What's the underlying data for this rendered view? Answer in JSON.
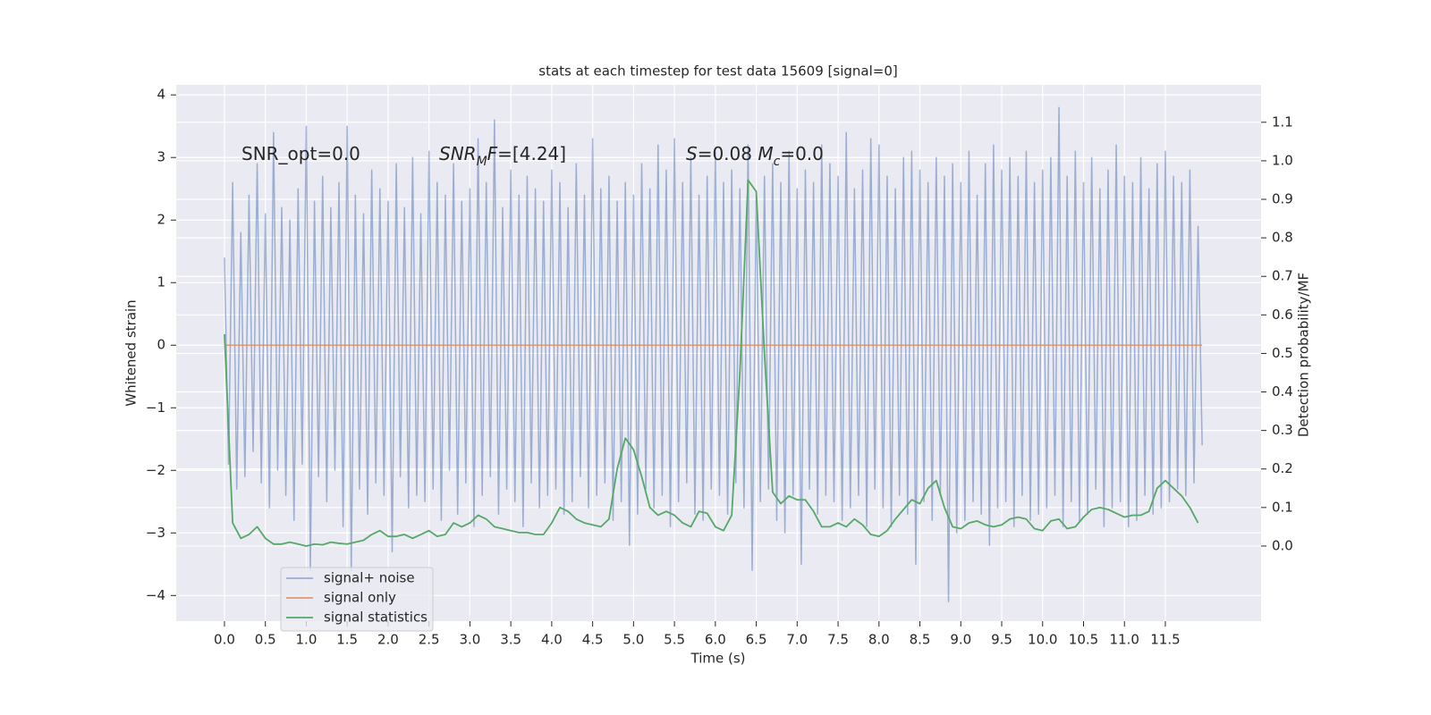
{
  "chart_data": {
    "type": "line",
    "title": "stats at each timestep for test data 15609 [signal=0]",
    "xlabel": "Time (s)",
    "ylabel": "Whitened strain",
    "y2label": "Detection probability/MF",
    "xlim": [
      -0.59,
      12.67
    ],
    "ylim": [
      -4.41,
      4.16
    ],
    "y2lim": [
      -0.195,
      1.197
    ],
    "grid": true,
    "background": "#eaeaf2",
    "legend": "lower left",
    "xticks": [
      {
        "value": 0,
        "label": "0.0"
      },
      0.5,
      {
        "value": 1,
        "label": "1.0"
      },
      1.5,
      {
        "value": 2,
        "label": "2.0"
      },
      2.5,
      {
        "value": 3,
        "label": "3.0"
      },
      3.5,
      {
        "value": 4,
        "label": "4.0"
      },
      4.5,
      {
        "value": 5,
        "label": "5.0"
      },
      5.5,
      {
        "value": 6,
        "label": "6.0"
      },
      6.5,
      {
        "value": 7,
        "label": "7.0"
      },
      7.5,
      {
        "value": 8,
        "label": "8.0"
      },
      8.5,
      {
        "value": 9,
        "label": "9.0"
      },
      9.5,
      {
        "value": 10,
        "label": "10.0"
      },
      10.5,
      {
        "value": 11,
        "label": "11.0"
      },
      11.5
    ],
    "yticks": [
      {
        "value": -4,
        "label": "−4"
      },
      {
        "value": -3,
        "label": "−3"
      },
      {
        "value": -2,
        "label": "−2"
      },
      {
        "value": -1,
        "label": "−1"
      },
      0,
      1,
      2,
      3,
      4
    ],
    "y2ticks": [
      {
        "value": 0,
        "label": "0.0"
      },
      0.1,
      0.2,
      0.3,
      0.4,
      0.5,
      0.6,
      0.7,
      0.8,
      0.9,
      {
        "value": 1,
        "label": "1.0"
      },
      1.1
    ],
    "annotations": [
      {
        "parts": [
          {
            "text": "SNR_opt=0.0"
          }
        ]
      },
      {
        "parts": [
          {
            "text": "SNR",
            "italic": true
          },
          {
            "text": "M",
            "italic": true,
            "sub": true
          },
          {
            "text": "F",
            "italic": true
          },
          {
            "text": "=[4.24]"
          }
        ]
      },
      {
        "parts": [
          {
            "text": "S",
            "italic": true
          },
          {
            "text": "=0.08   "
          },
          {
            "text": "M",
            "italic": true
          },
          {
            "text": "c",
            "italic": true,
            "sub": true
          },
          {
            "text": "=0.0"
          }
        ]
      }
    ],
    "series": [
      {
        "name": "signal+ noise",
        "color": "#4c72b0",
        "opacity": 0.5,
        "x": [
          0,
          0.05,
          0.1,
          0.15,
          0.2,
          0.25,
          0.3,
          0.35,
          0.4,
          0.45,
          0.5,
          0.55,
          0.6,
          0.65,
          0.7,
          0.75,
          0.8,
          0.85,
          0.9,
          0.95,
          1,
          1.05,
          1.1,
          1.15,
          1.2,
          1.25,
          1.3,
          1.35,
          1.4,
          1.45,
          1.5,
          1.55,
          1.6,
          1.65,
          1.7,
          1.75,
          1.8,
          1.85,
          1.9,
          1.95,
          2,
          2.05,
          2.1,
          2.15,
          2.2,
          2.25,
          2.3,
          2.35,
          2.4,
          2.45,
          2.5,
          2.55,
          2.6,
          2.65,
          2.7,
          2.75,
          2.8,
          2.85,
          2.9,
          2.95,
          3,
          3.05,
          3.1,
          3.15,
          3.2,
          3.25,
          3.3,
          3.35,
          3.4,
          3.45,
          3.5,
          3.55,
          3.6,
          3.65,
          3.7,
          3.75,
          3.8,
          3.85,
          3.9,
          3.95,
          4,
          4.05,
          4.1,
          4.15,
          4.2,
          4.25,
          4.3,
          4.35,
          4.4,
          4.45,
          4.5,
          4.55,
          4.6,
          4.65,
          4.7,
          4.75,
          4.8,
          4.85,
          4.9,
          4.95,
          5,
          5.05,
          5.1,
          5.15,
          5.2,
          5.25,
          5.3,
          5.35,
          5.4,
          5.45,
          5.5,
          5.55,
          5.6,
          5.65,
          5.7,
          5.75,
          5.8,
          5.85,
          5.9,
          5.95,
          6,
          6.05,
          6.1,
          6.15,
          6.2,
          6.25,
          6.3,
          6.35,
          6.4,
          6.45,
          6.5,
          6.55,
          6.6,
          6.65,
          6.7,
          6.75,
          6.8,
          6.85,
          6.9,
          6.95,
          7,
          7.05,
          7.1,
          7.15,
          7.2,
          7.25,
          7.3,
          7.35,
          7.4,
          7.45,
          7.5,
          7.55,
          7.6,
          7.65,
          7.7,
          7.75,
          7.8,
          7.85,
          7.9,
          7.95,
          8,
          8.05,
          8.1,
          8.15,
          8.2,
          8.25,
          8.3,
          8.35,
          8.4,
          8.45,
          8.5,
          8.55,
          8.6,
          8.65,
          8.7,
          8.75,
          8.8,
          8.85,
          8.9,
          8.95,
          9,
          9.05,
          9.1,
          9.15,
          9.2,
          9.25,
          9.3,
          9.35,
          9.4,
          9.45,
          9.5,
          9.55,
          9.6,
          9.65,
          9.7,
          9.75,
          9.8,
          9.85,
          9.9,
          9.95,
          10,
          10.05,
          10.1,
          10.15,
          10.2,
          10.25,
          10.3,
          10.35,
          10.4,
          10.45,
          10.5,
          10.55,
          10.6,
          10.65,
          10.7,
          10.75,
          10.8,
          10.85,
          10.9,
          10.95,
          11,
          11.05,
          11.1,
          11.15,
          11.2,
          11.25,
          11.3,
          11.35,
          11.4,
          11.45,
          11.5,
          11.55,
          11.6,
          11.65,
          11.7,
          11.75,
          11.8,
          11.85,
          11.9,
          11.95
        ],
        "values": [
          1.4,
          -1.9,
          2.6,
          -2.3,
          1.8,
          -2.1,
          2.4,
          -1.7,
          2.9,
          -2.2,
          2.1,
          -2.6,
          3.4,
          -2.0,
          2.2,
          -2.4,
          2.0,
          -2.8,
          2.5,
          -1.9,
          3.5,
          -3.6,
          2.3,
          -2.1,
          2.7,
          -2.5,
          2.2,
          -2.0,
          2.6,
          -2.9,
          3.5,
          -3.6,
          2.4,
          -2.3,
          2.1,
          -2.7,
          2.8,
          -2.2,
          2.5,
          -2.4,
          2.3,
          -3.3,
          2.9,
          -2.1,
          2.2,
          -2.6,
          3.0,
          -2.4,
          2.1,
          -2.5,
          3.1,
          -2.3,
          2.6,
          -2.8,
          2.4,
          -2.0,
          2.9,
          -2.7,
          2.3,
          -2.2,
          2.5,
          -2.9,
          3.3,
          -2.4,
          2.6,
          -2.1,
          3.6,
          -2.7,
          2.2,
          -2.3,
          2.8,
          -2.5,
          2.4,
          -2.9,
          2.7,
          -2.2,
          2.5,
          -2.6,
          2.3,
          -2.4,
          2.8,
          -2.3,
          2.6,
          -2.7,
          2.2,
          -2.5,
          2.9,
          -2.1,
          2.4,
          -2.6,
          3.3,
          -2.4,
          2.5,
          -2.2,
          2.7,
          -2.8,
          2.3,
          -2.5,
          2.6,
          -3.2,
          2.4,
          -2.7,
          2.9,
          -2.3,
          2.5,
          -2.6,
          3.2,
          -2.4,
          2.8,
          -2.9,
          3.3,
          -2.5,
          2.6,
          -2.2,
          3.0,
          -2.7,
          2.4,
          -2.8,
          2.7,
          -2.3,
          3.1,
          -2.4,
          2.6,
          -2.7,
          2.8,
          -2.2,
          2.5,
          -2.6,
          3.2,
          -3.6,
          2.4,
          -2.5,
          2.7,
          -2.3,
          2.9,
          -2.8,
          2.6,
          -3.0,
          3.1,
          -2.4,
          2.5,
          -3.5,
          2.8,
          -2.3,
          2.6,
          -2.7,
          3.2,
          -2.4,
          2.9,
          -2.5,
          2.7,
          -2.8,
          3.4,
          -2.6,
          2.5,
          -2.4,
          2.8,
          -2.9,
          3.3,
          -2.3,
          3.2,
          -2.6,
          2.7,
          -2.9,
          2.5,
          -2.4,
          3.0,
          -2.7,
          3.1,
          -3.5,
          2.8,
          -2.5,
          2.6,
          -2.8,
          3.0,
          -2.4,
          2.7,
          -4.1,
          2.9,
          -3.0,
          2.6,
          -2.8,
          3.1,
          -2.5,
          2.4,
          -2.7,
          2.9,
          -3.2,
          3.2,
          -2.6,
          2.8,
          -2.5,
          3.0,
          -2.9,
          2.7,
          -2.4,
          3.1,
          -2.8,
          2.6,
          -2.7,
          2.8,
          -2.6,
          3.0,
          -2.4,
          3.8,
          -2.9,
          2.7,
          -2.5,
          3.1,
          -2.8,
          2.6,
          -2.7,
          3.0,
          -2.3,
          2.5,
          -2.9,
          2.8,
          -2.6,
          3.2,
          -2.5,
          2.7,
          -2.9,
          2.6,
          -2.8,
          3.0,
          -2.4,
          2.5,
          -2.7,
          2.9,
          -2.6,
          3.1,
          -2.5,
          2.7,
          -2.3,
          2.6,
          -2.4,
          2.8,
          -2.2,
          1.9,
          -1.6
        ]
      },
      {
        "name": "signal only",
        "color": "#dd8452",
        "opacity": 0.8,
        "x": [
          0,
          11.95
        ],
        "values": [
          0,
          0
        ]
      },
      {
        "name": "signal statistics",
        "color": "#55a868",
        "opacity": 1,
        "axis": "y2",
        "x": [
          0,
          0.1,
          0.2,
          0.3,
          0.4,
          0.5,
          0.6,
          0.7,
          0.8,
          0.9,
          1,
          1.1,
          1.2,
          1.3,
          1.4,
          1.5,
          1.6,
          1.7,
          1.8,
          1.9,
          2,
          2.1,
          2.2,
          2.3,
          2.4,
          2.5,
          2.6,
          2.7,
          2.8,
          2.9,
          3,
          3.1,
          3.2,
          3.3,
          3.4,
          3.5,
          3.6,
          3.7,
          3.8,
          3.9,
          4,
          4.1,
          4.2,
          4.3,
          4.4,
          4.5,
          4.6,
          4.7,
          4.8,
          4.9,
          5,
          5.1,
          5.2,
          5.3,
          5.4,
          5.5,
          5.6,
          5.7,
          5.8,
          5.9,
          6,
          6.1,
          6.2,
          6.3,
          6.4,
          6.5,
          6.6,
          6.7,
          6.8,
          6.9,
          7,
          7.1,
          7.2,
          7.3,
          7.4,
          7.5,
          7.6,
          7.7,
          7.8,
          7.9,
          8,
          8.1,
          8.2,
          8.3,
          8.4,
          8.5,
          8.6,
          8.7,
          8.8,
          8.9,
          9,
          9.1,
          9.2,
          9.3,
          9.4,
          9.5,
          9.6,
          9.7,
          9.8,
          9.9,
          10,
          10.1,
          10.2,
          10.3,
          10.4,
          10.5,
          10.6,
          10.7,
          10.8,
          10.9,
          11,
          11.1,
          11.2,
          11.3,
          11.4,
          11.5,
          11.6,
          11.7,
          11.8,
          11.9
        ],
        "values": [
          0.55,
          0.06,
          0.02,
          0.03,
          0.05,
          0.02,
          0.005,
          0.005,
          0.01,
          0.005,
          0.0,
          0.005,
          0.003,
          0.01,
          0.007,
          0.005,
          0.01,
          0.015,
          0.03,
          0.04,
          0.025,
          0.025,
          0.03,
          0.02,
          0.03,
          0.04,
          0.025,
          0.03,
          0.06,
          0.05,
          0.06,
          0.08,
          0.07,
          0.05,
          0.045,
          0.04,
          0.035,
          0.035,
          0.03,
          0.03,
          0.06,
          0.1,
          0.09,
          0.07,
          0.06,
          0.055,
          0.05,
          0.07,
          0.2,
          0.28,
          0.25,
          0.18,
          0.1,
          0.08,
          0.09,
          0.08,
          0.06,
          0.05,
          0.09,
          0.085,
          0.05,
          0.04,
          0.08,
          0.45,
          0.95,
          0.92,
          0.5,
          0.14,
          0.11,
          0.13,
          0.12,
          0.12,
          0.09,
          0.05,
          0.05,
          0.06,
          0.05,
          0.07,
          0.055,
          0.03,
          0.025,
          0.04,
          0.07,
          0.095,
          0.12,
          0.11,
          0.15,
          0.17,
          0.1,
          0.05,
          0.045,
          0.06,
          0.065,
          0.055,
          0.05,
          0.055,
          0.07,
          0.075,
          0.07,
          0.045,
          0.04,
          0.065,
          0.07,
          0.045,
          0.05,
          0.075,
          0.095,
          0.1,
          0.095,
          0.085,
          0.075,
          0.08,
          0.08,
          0.09,
          0.15,
          0.17,
          0.15,
          0.13,
          0.1,
          0.06
        ]
      }
    ]
  }
}
